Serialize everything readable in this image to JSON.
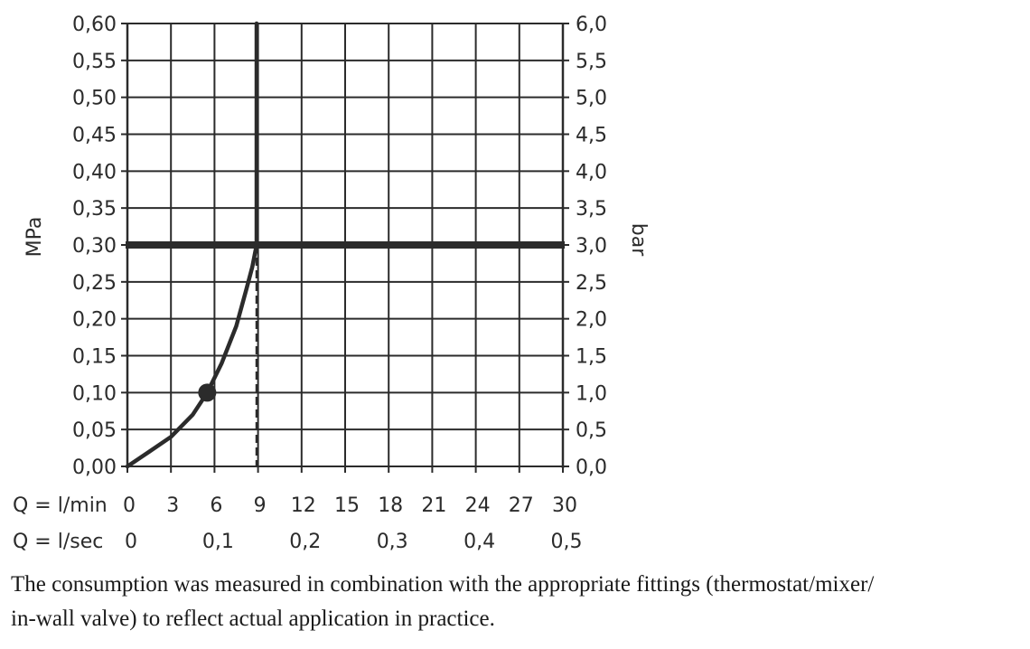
{
  "chart_data": {
    "type": "line",
    "ylabel_left": "MPa",
    "ylabel_right": "bar",
    "y_ticks_left": [
      "0,00",
      "0,05",
      "0,10",
      "0,15",
      "0,20",
      "0,25",
      "0,30",
      "0,35",
      "0,40",
      "0,45",
      "0,50",
      "0,55",
      "0,60"
    ],
    "y_ticks_right": [
      "0,0",
      "0,5",
      "1,0",
      "1,5",
      "2,0",
      "2,5",
      "3,0",
      "3,5",
      "4,0",
      "4,5",
      "5,0",
      "5,5",
      "6,0"
    ],
    "ylim": [
      0,
      0.6
    ],
    "xlim": [
      0,
      30
    ],
    "x_axis_lpm_label": "Q = l/min",
    "x_ticks_lpm": [
      "0",
      "3",
      "6",
      "9",
      "12",
      "15",
      "18",
      "21",
      "24",
      "27",
      "30"
    ],
    "x_axis_lps_label": "Q = l/sec",
    "x_ticks_lps": [
      "0",
      "0,1",
      "0,2",
      "0,3",
      "0,4",
      "0,5"
    ],
    "grid": true,
    "series": [
      {
        "x": [
          0,
          1.5,
          3,
          4.5,
          5.5,
          6.5,
          7.5,
          8.2,
          8.6,
          8.8,
          8.9,
          8.9
        ],
        "y": [
          0,
          0.02,
          0.04,
          0.07,
          0.1,
          0.14,
          0.19,
          0.24,
          0.27,
          0.29,
          0.3,
          0.6
        ]
      }
    ],
    "reference_line_y": 0.3,
    "reference_line_x": 8.9,
    "marker_point": {
      "x": 5.5,
      "y": 0.1
    }
  },
  "footnote": {
    "line1": "The consumption was measured in combination with the appropriate fittings (thermostat/mixer/",
    "line2": "in-wall valve) to reflect actual application in practice."
  }
}
